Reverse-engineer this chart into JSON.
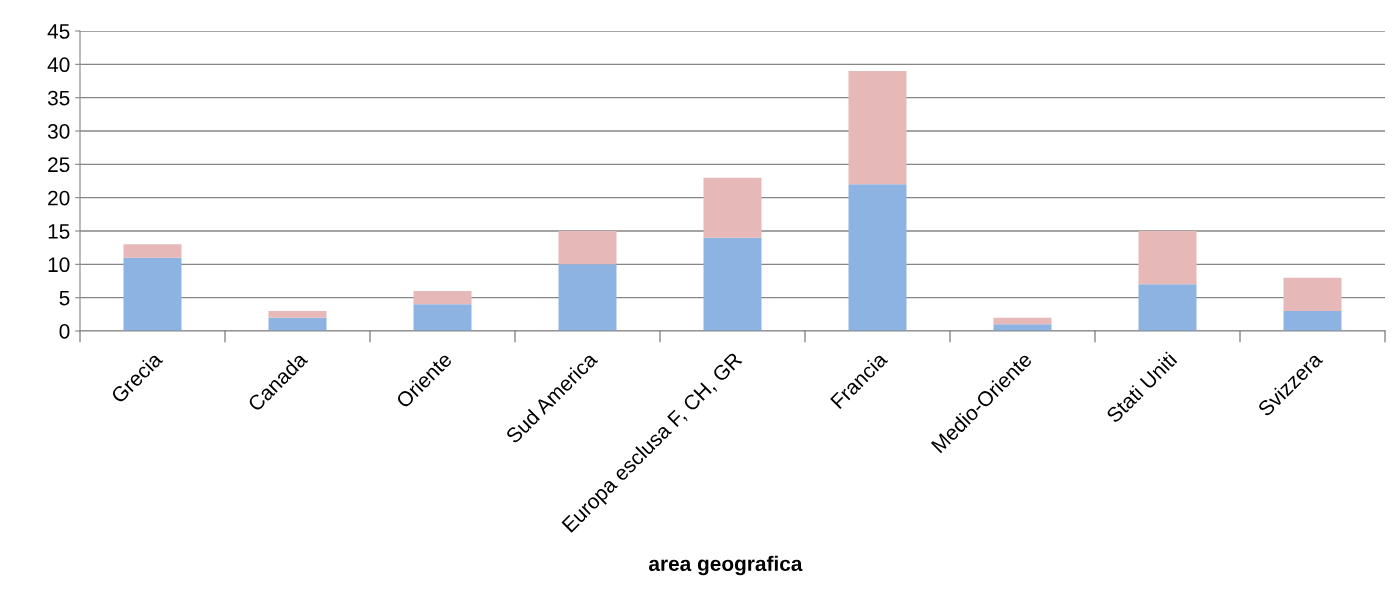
{
  "chart_data": {
    "type": "bar",
    "stacked": true,
    "xlabel": "area geografica",
    "categories": [
      "Grecia",
      "Canada",
      "Oriente",
      "Sud America",
      "Europa esclusa F, CH, GR",
      "Francia",
      "Medio-Oriente",
      "Stati Uniti",
      "Svizzera"
    ],
    "series": [
      {
        "color": "#8db3e2",
        "values": [
          11,
          2,
          4,
          10,
          14,
          22,
          1,
          7,
          3
        ]
      },
      {
        "color": "#e6b9b8",
        "values": [
          2,
          1,
          2,
          5,
          9,
          17,
          1,
          8,
          5
        ]
      }
    ],
    "ylim": [
      0,
      45
    ],
    "yticks": [
      0,
      5,
      10,
      15,
      20,
      25,
      30,
      35,
      40,
      45
    ],
    "grid": "y"
  }
}
